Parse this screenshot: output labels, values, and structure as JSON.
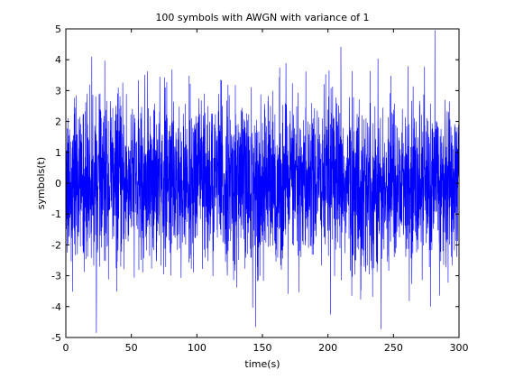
{
  "chart_data": {
    "type": "line",
    "title": "100 symbols with AWGN with variance of 1",
    "xlabel": "time(s)",
    "ylabel": "symbols(t)",
    "xlim": [
      0,
      300
    ],
    "ylim": [
      -5,
      5
    ],
    "xticks": [
      0,
      50,
      100,
      150,
      200,
      250,
      300
    ],
    "yticks": [
      -5,
      -4,
      -3,
      -2,
      -1,
      0,
      1,
      2,
      3,
      4,
      5
    ],
    "grid": false,
    "box": true,
    "series": [
      {
        "color": "#0000ff",
        "sample_count": 3000,
        "x_range": [
          0,
          300
        ],
        "approx_mean": 0,
        "approx_peak_range": [
          -4.9,
          5.0
        ],
        "approx_core_range": [
          -1.9,
          1.9
        ]
      }
    ]
  }
}
